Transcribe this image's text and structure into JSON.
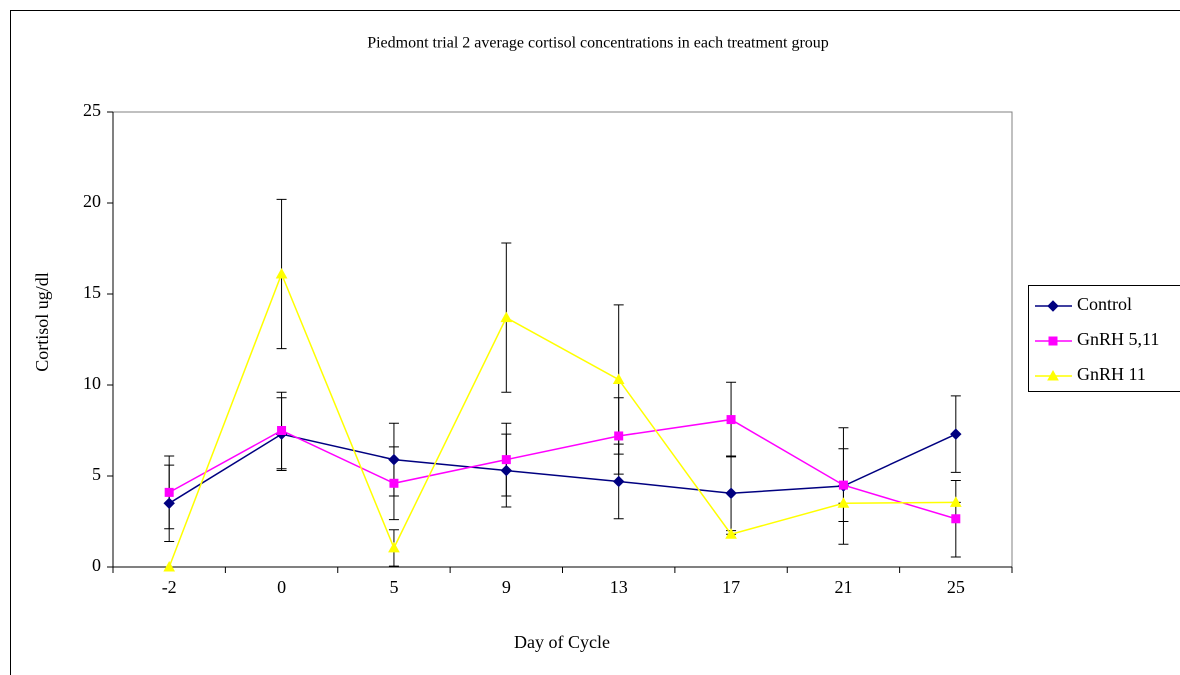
{
  "chart_data": {
    "type": "line",
    "title": "Piedmont trial 2 average cortisol concentrations in each treatment group",
    "x_label": "Day of Cycle",
    "y_label": "Cortisol ug/dl",
    "categories": [
      "-2",
      "0",
      "5",
      "9",
      "13",
      "17",
      "21",
      "25"
    ],
    "ylim": [
      0,
      25
    ],
    "yticks": [
      0,
      5,
      10,
      15,
      20,
      25
    ],
    "legend": "right",
    "series": [
      {
        "name": "Control",
        "color": "#000080",
        "marker": "diamond",
        "values": [
          3.5,
          7.3,
          5.9,
          5.3,
          4.7,
          4.05,
          4.45,
          7.3
        ],
        "errors": [
          2.1,
          2.0,
          2.0,
          2.0,
          2.05,
          2.05,
          3.2,
          2.1
        ]
      },
      {
        "name": "GnRH 5,11",
        "color": "#ff00ff",
        "marker": "square",
        "values": [
          4.1,
          7.5,
          4.6,
          5.9,
          7.2,
          8.1,
          4.5,
          2.65
        ],
        "errors": [
          2.0,
          2.1,
          2.0,
          2.0,
          2.1,
          2.05,
          2.0,
          2.1
        ]
      },
      {
        "name": "GnRH 11",
        "color": "#ffff00",
        "marker": "triangle",
        "values": [
          0,
          16.1,
          1.05,
          13.7,
          10.3,
          1.8,
          3.5,
          3.55
        ],
        "errors": [
          0,
          4.1,
          1.0,
          4.1,
          4.1,
          0,
          0,
          0
        ]
      }
    ]
  }
}
